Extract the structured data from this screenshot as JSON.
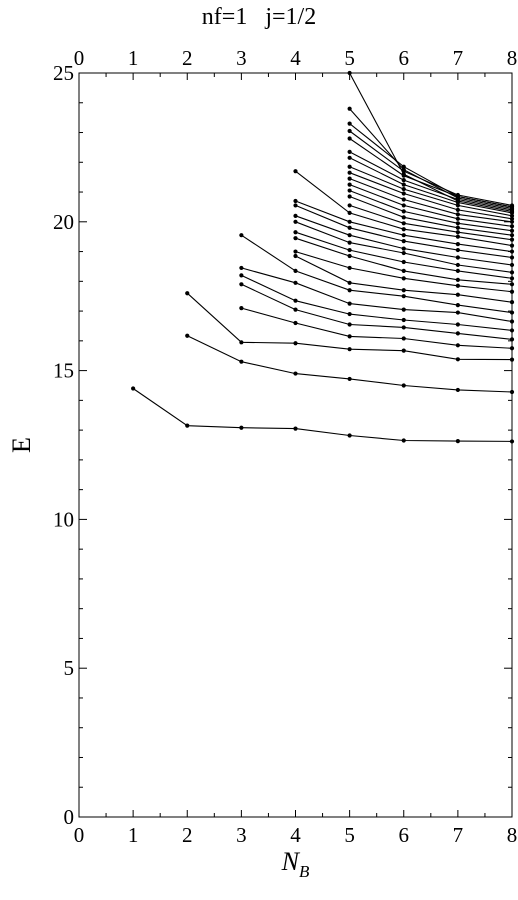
{
  "chart_data": {
    "type": "line",
    "title": "nf=1   j=1/2",
    "xlabel": "N",
    "xlabel_sub": "B",
    "ylabel": "E",
    "xlim": [
      0,
      8
    ],
    "ylim": [
      0,
      25
    ],
    "x_ticks": [
      0,
      1,
      2,
      3,
      4,
      5,
      6,
      7,
      8
    ],
    "y_ticks": [
      0,
      5,
      10,
      15,
      20,
      25
    ],
    "grid": false,
    "legend": "none",
    "color": "#000000",
    "series": [
      {
        "x": [
          1,
          2,
          3,
          4,
          5,
          6,
          7,
          8
        ],
        "y": [
          14.4,
          13.15,
          13.08,
          13.05,
          12.82,
          12.65,
          12.63,
          12.62
        ]
      },
      {
        "x": [
          2,
          3,
          4,
          5,
          6,
          7,
          8
        ],
        "y": [
          16.17,
          15.3,
          14.9,
          14.72,
          14.5,
          14.35,
          14.28
        ]
      },
      {
        "x": [
          2,
          3,
          4,
          5,
          6,
          7,
          8
        ],
        "y": [
          17.6,
          15.95,
          15.92,
          15.72,
          15.67,
          15.38,
          15.37
        ]
      },
      {
        "x": [
          3,
          4,
          5,
          6,
          7,
          8
        ],
        "y": [
          17.1,
          16.6,
          16.15,
          16.08,
          15.85,
          15.75
        ]
      },
      {
        "x": [
          3,
          4,
          5,
          6,
          7,
          8
        ],
        "y": [
          17.9,
          17.05,
          16.55,
          16.45,
          16.25,
          16.05
        ]
      },
      {
        "x": [
          3,
          4,
          5,
          6,
          7,
          8
        ],
        "y": [
          18.2,
          17.35,
          16.9,
          16.7,
          16.55,
          16.35
        ]
      },
      {
        "x": [
          3,
          4,
          5,
          6,
          7,
          8
        ],
        "y": [
          18.45,
          17.95,
          17.25,
          17.05,
          16.95,
          16.65
        ]
      },
      {
        "x": [
          3,
          4,
          5,
          6,
          7,
          8
        ],
        "y": [
          19.55,
          18.35,
          17.7,
          17.5,
          17.2,
          16.95
        ]
      },
      {
        "x": [
          4,
          5,
          6,
          7,
          8
        ],
        "y": [
          18.85,
          17.95,
          17.7,
          17.55,
          17.3
        ]
      },
      {
        "x": [
          4,
          5,
          6,
          7,
          8
        ],
        "y": [
          19.0,
          18.45,
          18.1,
          17.85,
          17.65
        ]
      },
      {
        "x": [
          4,
          5,
          6,
          7,
          8
        ],
        "y": [
          19.45,
          18.85,
          18.35,
          18.05,
          17.9
        ]
      },
      {
        "x": [
          4,
          5,
          6,
          7,
          8
        ],
        "y": [
          19.65,
          19.05,
          18.65,
          18.35,
          18.1
        ]
      },
      {
        "x": [
          4,
          5,
          6,
          7,
          8
        ],
        "y": [
          20.0,
          19.3,
          18.95,
          18.55,
          18.3
        ]
      },
      {
        "x": [
          4,
          5,
          6,
          7,
          8
        ],
        "y": [
          20.2,
          19.55,
          19.1,
          18.8,
          18.55
        ]
      },
      {
        "x": [
          4,
          5,
          6,
          7,
          8
        ],
        "y": [
          20.55,
          19.8,
          19.35,
          19.05,
          18.8
        ]
      },
      {
        "x": [
          4,
          5,
          6,
          7,
          8
        ],
        "y": [
          20.7,
          20.0,
          19.55,
          19.25,
          19.0
        ]
      },
      {
        "x": [
          4,
          5,
          6,
          7,
          8
        ],
        "y": [
          21.7,
          20.3,
          19.75,
          19.5,
          19.2
        ]
      },
      {
        "x": [
          5,
          6,
          7,
          8
        ],
        "y": [
          20.55,
          19.95,
          19.65,
          19.4
        ]
      },
      {
        "x": [
          5,
          6,
          7,
          8
        ],
        "y": [
          20.85,
          20.15,
          19.8,
          19.55
        ]
      },
      {
        "x": [
          5,
          6,
          7,
          8
        ],
        "y": [
          21.05,
          20.35,
          19.95,
          19.7
        ]
      },
      {
        "x": [
          5,
          6,
          7,
          8
        ],
        "y": [
          21.25,
          20.55,
          20.1,
          19.85
        ]
      },
      {
        "x": [
          5,
          6,
          7,
          8
        ],
        "y": [
          21.45,
          20.75,
          20.25,
          20.0
        ]
      },
      {
        "x": [
          5,
          6,
          7,
          8
        ],
        "y": [
          21.65,
          20.95,
          20.4,
          20.1
        ]
      },
      {
        "x": [
          5,
          6,
          7,
          8
        ],
        "y": [
          21.85,
          21.1,
          20.55,
          20.2
        ]
      },
      {
        "x": [
          5,
          6,
          7,
          8
        ],
        "y": [
          22.15,
          21.25,
          20.65,
          20.3
        ]
      },
      {
        "x": [
          5,
          6,
          7,
          8
        ],
        "y": [
          22.35,
          21.4,
          20.75,
          20.4
        ]
      },
      {
        "x": [
          5,
          6,
          7,
          8
        ],
        "y": [
          22.8,
          21.55,
          20.85,
          20.5
        ]
      },
      {
        "x": [
          5,
          6,
          7,
          8
        ],
        "y": [
          23.05,
          21.7,
          20.9,
          20.55
        ]
      },
      {
        "x": [
          5,
          6,
          7,
          8
        ],
        "y": [
          23.3,
          21.85,
          20.85,
          20.5
        ]
      },
      {
        "x": [
          5,
          6,
          7,
          8
        ],
        "y": [
          23.8,
          21.75,
          20.8,
          20.45
        ]
      },
      {
        "x": [
          5,
          6,
          7,
          8
        ],
        "y": [
          25.0,
          21.6,
          20.7,
          20.35
        ]
      }
    ]
  }
}
